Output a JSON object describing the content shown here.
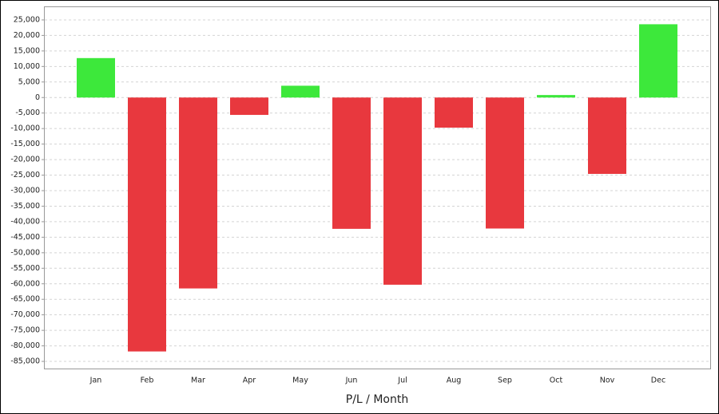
{
  "chart_data": {
    "type": "bar",
    "x_label": "P/L / Month",
    "categories": [
      "Jan",
      "Feb",
      "Mar",
      "Apr",
      "May",
      "Jun",
      "Jul",
      "Aug",
      "Sep",
      "Oct",
      "Nov",
      "Dec"
    ],
    "values": [
      12700,
      -81800,
      -61500,
      -5600,
      3800,
      -42300,
      -60300,
      -9700,
      -42200,
      800,
      -24600,
      23600
    ],
    "positive_color": "#3de83b",
    "negative_color": "#e8383e",
    "ylim": [
      -87300,
      29100
    ],
    "yticks": [
      {
        "value": -85000,
        "label": "-85,000"
      },
      {
        "value": -80000,
        "label": "-80,000"
      },
      {
        "value": -75000,
        "label": "-75,000"
      },
      {
        "value": -70000,
        "label": "-70,000"
      },
      {
        "value": -65000,
        "label": "-65,000"
      },
      {
        "value": -60000,
        "label": "-60,000"
      },
      {
        "value": -55000,
        "label": "-55,000"
      },
      {
        "value": -50000,
        "label": "-50,000"
      },
      {
        "value": -45000,
        "label": "-45,000"
      },
      {
        "value": -40000,
        "label": "-40,000"
      },
      {
        "value": -35000,
        "label": "-35,000"
      },
      {
        "value": -30000,
        "label": "-30,000"
      },
      {
        "value": -25000,
        "label": "-25,000"
      },
      {
        "value": -20000,
        "label": "-20,000"
      },
      {
        "value": -15000,
        "label": "-15,000"
      },
      {
        "value": -10000,
        "label": "-10,000"
      },
      {
        "value": -5000,
        "label": "-5,000"
      },
      0,
      {
        "value": 5000,
        "label": "5,000"
      },
      {
        "value": 10000,
        "label": "10,000"
      },
      {
        "value": 15000,
        "label": "15,000"
      },
      {
        "value": 20000,
        "label": "20,000"
      },
      {
        "value": 25000,
        "label": "25,000"
      }
    ],
    "grid": true
  }
}
